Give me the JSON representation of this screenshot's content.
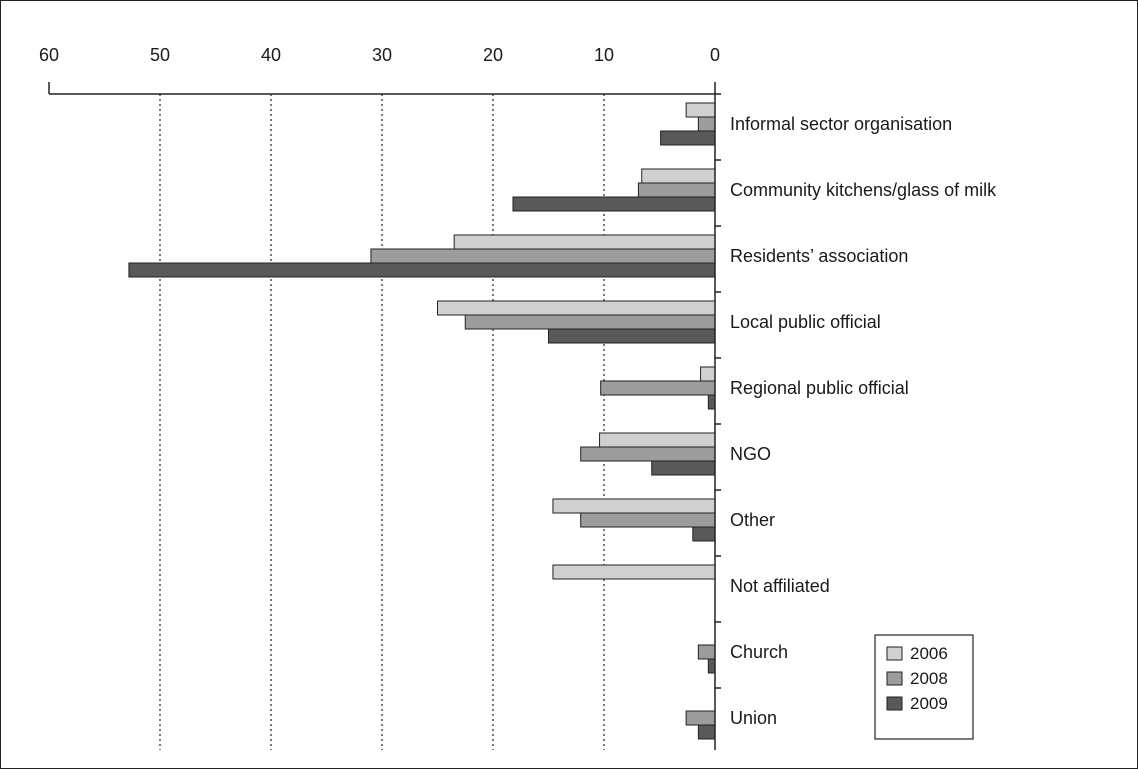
{
  "chart_data": {
    "type": "bar",
    "orientation": "horizontal",
    "x_direction": "reversed",
    "xlim": [
      60,
      0
    ],
    "xticks": [
      "60",
      "50",
      "40",
      "30",
      "20",
      "10",
      "0"
    ],
    "grid": "dotted vertical lines",
    "legend_position": "bottom-right",
    "title": "",
    "xlabel": "",
    "ylabel": "",
    "categories": [
      "Informal sector organisation",
      "Community kitchens/glass of milk",
      "Residents’ association",
      "Local public official",
      "Regional public official",
      "NGO",
      "Other",
      "Not affiliated",
      "Church",
      "Union"
    ],
    "series": [
      {
        "name": "2006",
        "color": "#d0d0d0",
        "values": [
          2.6,
          6.6,
          23.5,
          25.0,
          1.3,
          10.4,
          14.6,
          14.6,
          0,
          0
        ]
      },
      {
        "name": "2008",
        "color": "#9c9c9c",
        "values": [
          1.5,
          6.9,
          31.0,
          22.5,
          10.3,
          12.1,
          12.1,
          0,
          1.5,
          2.6
        ]
      },
      {
        "name": "2009",
        "color": "#595959",
        "values": [
          4.9,
          18.2,
          52.8,
          15.0,
          0.6,
          5.7,
          2.0,
          0,
          0.6,
          1.5
        ]
      }
    ]
  }
}
